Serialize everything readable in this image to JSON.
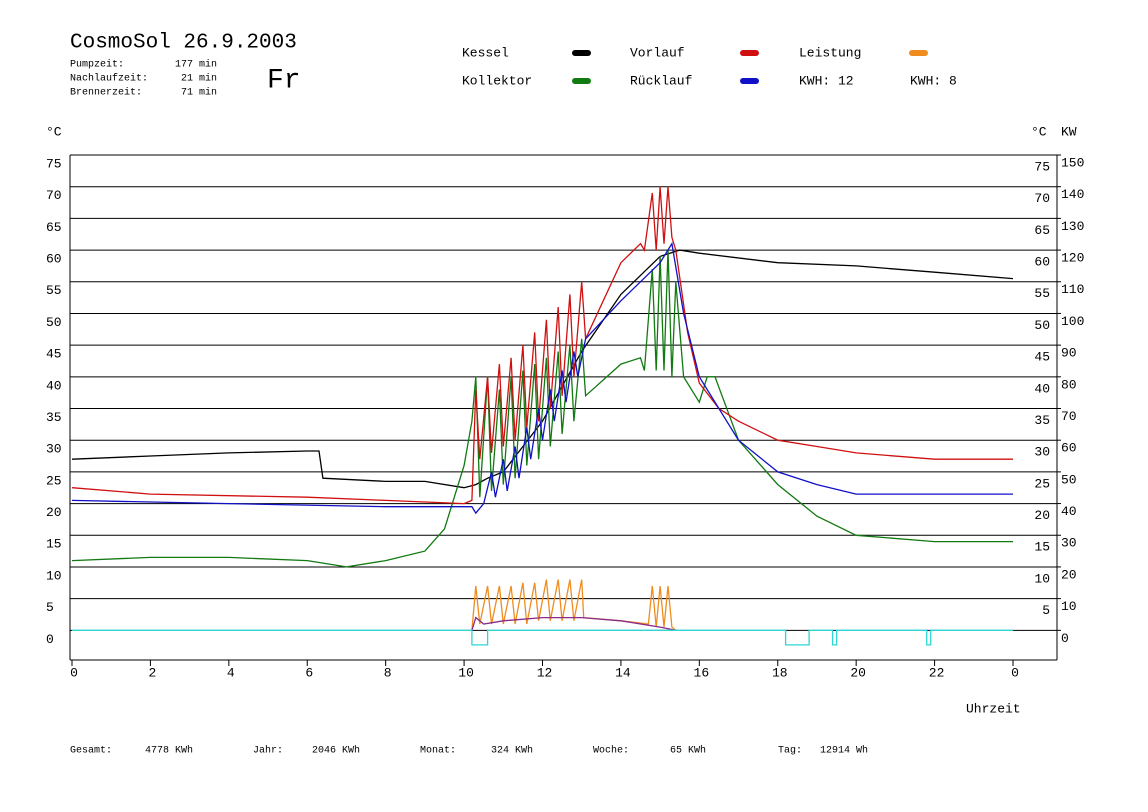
{
  "chart_data": {
    "type": "line",
    "title": "CosmoSol 26.9.2003",
    "info": [
      {
        "label": "Pumpzeit:",
        "value": "177 min"
      },
      {
        "label": "Nachlaufzeit:",
        "value": "21 min"
      },
      {
        "label": "Brennerzeit:",
        "value": "71 min"
      }
    ],
    "weekday": "Fr",
    "kwh_labels": [
      {
        "text": "KWH: 12",
        "color": "#f08c1e"
      },
      {
        "text": "KWH: 8",
        "color": "#8a2a8a"
      }
    ],
    "ylabel": "°C",
    "y2label_c": "°C",
    "y2label": "KW",
    "xlabel": "Uhrzeit",
    "footer": [
      {
        "label": "Gesamt:",
        "value": "4778 KWh"
      },
      {
        "label": "Jahr:",
        "value": "2046 KWh"
      },
      {
        "label": "Monat:",
        "value": "324 KWh"
      },
      {
        "label": "Woche:",
        "value": "65 KWh"
      },
      {
        "label": "Tag:",
        "value": "12914 Wh"
      }
    ],
    "xlim": [
      0,
      24
    ],
    "xticks": [
      0,
      2,
      4,
      6,
      8,
      10,
      12,
      14,
      16,
      18,
      20,
      22,
      {
        "value": 24,
        "label": "0"
      }
    ],
    "ylim": [
      -5,
      75
    ],
    "yticks": [
      0,
      5,
      10,
      15,
      20,
      25,
      30,
      35,
      40,
      45,
      50,
      55,
      60,
      65,
      70,
      75
    ],
    "y2lim": [
      -10,
      150
    ],
    "y2ticks": [
      0,
      10,
      20,
      30,
      40,
      50,
      60,
      70,
      80,
      90,
      100,
      110,
      120,
      130,
      140,
      150
    ],
    "grid": true,
    "series": [
      {
        "name": "Kessel",
        "color": "#000000",
        "x": [
          0,
          2,
          4,
          6,
          6.3,
          6.4,
          8,
          9,
          10,
          10.3,
          10.6,
          11,
          12,
          13,
          14,
          15,
          15.5,
          16,
          18,
          20,
          22,
          24
        ],
        "values": [
          27,
          27.5,
          28,
          28.3,
          28.3,
          24,
          23.5,
          23.5,
          22.5,
          23,
          24,
          25,
          33,
          44,
          53,
          59,
          60,
          59.5,
          58,
          57.5,
          56.5,
          55.5
        ]
      },
      {
        "name": "Kollektor",
        "color": "#117a11",
        "x": [
          0,
          2,
          4,
          6,
          7,
          8,
          9,
          9.5,
          10,
          10.2,
          10.3,
          10.4,
          10.6,
          10.7,
          10.9,
          11.0,
          11.2,
          11.3,
          11.5,
          11.6,
          11.8,
          11.9,
          12.1,
          12.2,
          12.4,
          12.5,
          12.7,
          12.8,
          13.0,
          13.1,
          14,
          14.5,
          14.6,
          14.8,
          14.9,
          15.0,
          15.1,
          15.2,
          15.3,
          15.4,
          15.6,
          16,
          16.2,
          16.4,
          17,
          18,
          19,
          20,
          22,
          24
        ],
        "values": [
          11,
          11.5,
          11.5,
          11,
          10,
          11,
          12.5,
          16,
          26,
          33,
          40,
          21,
          40,
          22,
          38,
          23,
          40,
          24,
          41,
          26,
          42,
          27,
          43,
          29,
          44,
          31,
          45,
          33,
          46,
          37,
          42,
          43,
          41,
          57,
          41,
          59,
          41,
          60,
          40,
          55,
          40,
          36,
          40,
          40,
          30,
          23,
          18,
          15,
          14,
          14
        ]
      },
      {
        "name": "Vorlauf",
        "color": "#d01010",
        "x": [
          0,
          2,
          6,
          8,
          10,
          10.2,
          10.3,
          10.4,
          10.6,
          10.7,
          10.9,
          11.0,
          11.2,
          11.3,
          11.5,
          11.6,
          11.8,
          11.9,
          12.1,
          12.2,
          12.4,
          12.5,
          12.7,
          12.8,
          13.0,
          13.1,
          14,
          14.5,
          14.6,
          14.8,
          14.9,
          15,
          15.1,
          15.2,
          15.3,
          15.4,
          15.7,
          16,
          16.5,
          17,
          18,
          19,
          20,
          22,
          24
        ],
        "values": [
          22.5,
          21.5,
          21,
          20.5,
          20,
          20.5,
          38,
          27,
          40,
          28,
          42,
          29,
          43,
          30,
          45,
          32,
          47,
          33,
          49,
          35,
          51,
          37,
          53,
          40,
          55,
          46,
          58,
          61,
          60,
          69,
          60,
          70,
          61,
          70,
          62,
          60,
          47,
          39,
          35,
          33,
          30,
          29,
          28,
          27,
          27
        ]
      },
      {
        "name": "Rücklauf",
        "color": "#1010c8",
        "x": [
          0,
          4,
          8,
          10.2,
          10.3,
          10.5,
          10.7,
          10.8,
          11.0,
          11.1,
          11.3,
          11.4,
          11.6,
          11.7,
          11.9,
          12.0,
          12.2,
          12.3,
          12.5,
          12.6,
          12.8,
          12.9,
          13.1,
          14,
          15,
          15.3,
          15.6,
          16,
          17,
          18,
          19,
          20,
          22,
          24
        ],
        "values": [
          20.5,
          20,
          19.5,
          19.5,
          18.5,
          20,
          25,
          21,
          27,
          22,
          29,
          24,
          32,
          27,
          35,
          30,
          38,
          33,
          41,
          36,
          44,
          40,
          46,
          52,
          58,
          61,
          50,
          40,
          30,
          25,
          23,
          21.5,
          21.5,
          21.5
        ]
      },
      {
        "name": "Leistung",
        "color": "#f08c1e",
        "axis": "y2",
        "x": [
          10.2,
          10.3,
          10.4,
          10.6,
          10.7,
          10.9,
          11.0,
          11.2,
          11.3,
          11.5,
          11.6,
          11.8,
          11.9,
          12.1,
          12.2,
          12.4,
          12.5,
          12.7,
          12.8,
          13.0,
          13.05,
          14,
          14.7,
          14.8,
          14.9,
          15,
          15.1,
          15.2,
          15.3,
          15.4
        ],
        "values": [
          0,
          14,
          2,
          14,
          2,
          14,
          2,
          14,
          2,
          15,
          2,
          15,
          3,
          16,
          3,
          16,
          3,
          16,
          3,
          16,
          4,
          3,
          2,
          14,
          1,
          14,
          1,
          14,
          1,
          0
        ]
      },
      {
        "color": "#8a2a8a",
        "axis": "y2",
        "x": [
          10.2,
          10.3,
          10.5,
          11,
          12,
          13,
          14,
          15,
          15.4
        ],
        "values": [
          0,
          4,
          2,
          3,
          4,
          4,
          3,
          1,
          0
        ]
      },
      {
        "color": "#2fd6d6",
        "x": [
          0,
          10.2,
          10.2,
          10.6,
          10.6,
          18.2,
          18.2,
          18.8,
          18.8,
          19.4,
          19.4,
          19.5,
          19.5,
          21.8,
          21.8,
          21.9,
          21.9,
          24
        ],
        "values": [
          0,
          0,
          -2.3,
          -2.3,
          0,
          0,
          -2.3,
          -2.3,
          0,
          0,
          -2.3,
          -2.3,
          0,
          0,
          -2.3,
          -2.3,
          0,
          0
        ]
      }
    ]
  }
}
